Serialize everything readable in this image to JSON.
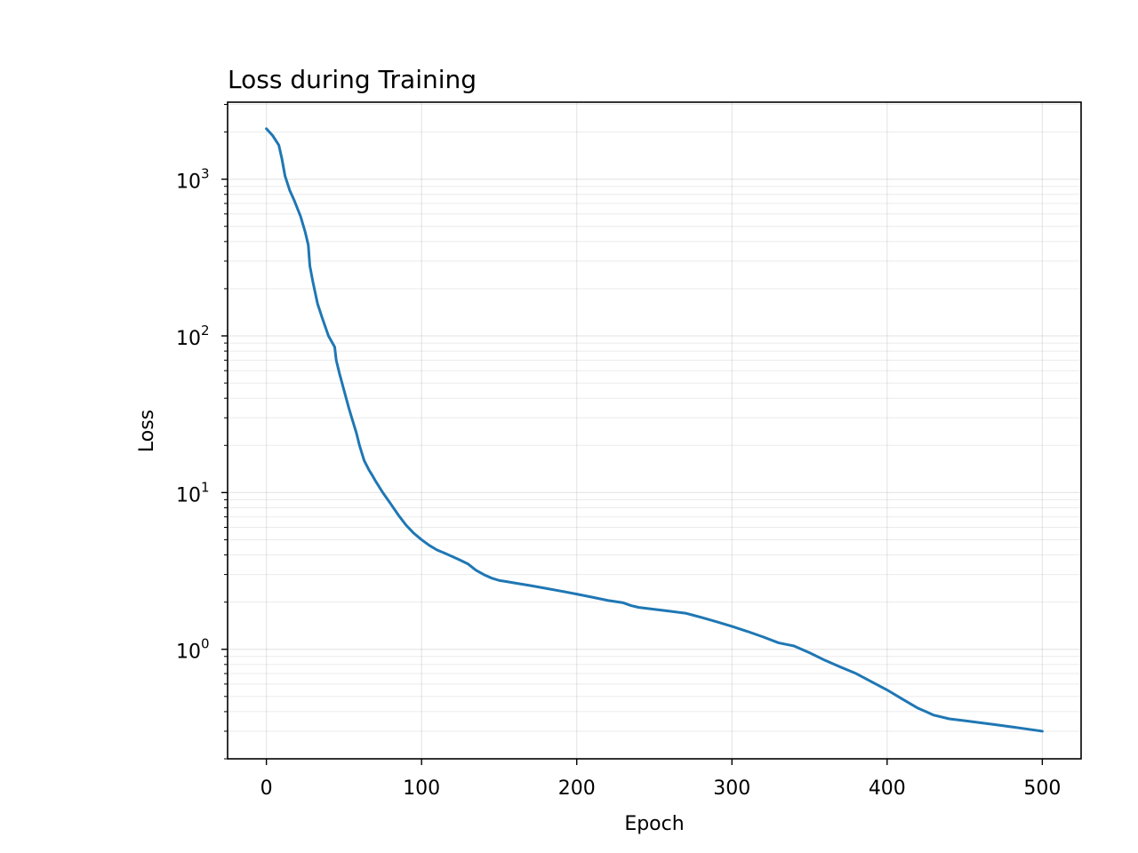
{
  "chart_data": {
    "type": "line",
    "title": "Loss during Training",
    "xlabel": "Epoch",
    "ylabel": "Loss",
    "yscale": "log",
    "xlim": [
      -25,
      525
    ],
    "ylim": [
      0.2,
      3100
    ],
    "xticks": [
      0,
      100,
      200,
      300,
      400,
      500
    ],
    "yticks": [
      {
        "value": 1,
        "base": "10",
        "exp": "0"
      },
      {
        "value": 10,
        "base": "10",
        "exp": "1"
      },
      {
        "value": 100,
        "base": "10",
        "exp": "2"
      },
      {
        "value": 1000,
        "base": "10",
        "exp": "3"
      }
    ],
    "grid": true,
    "line_color": "#1f77b4",
    "series": [
      {
        "x": [
          0,
          4,
          8,
          10,
          12,
          15,
          18,
          22,
          25,
          27,
          28,
          30,
          33,
          36,
          40,
          44,
          45,
          47,
          50,
          53,
          55,
          58,
          60,
          63,
          66,
          68,
          70,
          75,
          80,
          85,
          90,
          95,
          100,
          105,
          110,
          115,
          120,
          125,
          130,
          135,
          140,
          145,
          150,
          155,
          160,
          170,
          180,
          190,
          200,
          210,
          220,
          230,
          235,
          240,
          250,
          260,
          270,
          275,
          280,
          285,
          290,
          300,
          310,
          320,
          330,
          340,
          350,
          360,
          370,
          380,
          390,
          400,
          410,
          420,
          425,
          430,
          440,
          450,
          460,
          470,
          480,
          490,
          500
        ],
        "y": [
          2100,
          1900,
          1650,
          1350,
          1050,
          850,
          730,
          580,
          460,
          380,
          280,
          220,
          160,
          130,
          100,
          85,
          70,
          58,
          45,
          35,
          30,
          24,
          20,
          16,
          14,
          13,
          12,
          10,
          8.5,
          7.2,
          6.2,
          5.5,
          5.0,
          4.6,
          4.3,
          4.1,
          3.9,
          3.7,
          3.5,
          3.2,
          3.0,
          2.85,
          2.75,
          2.7,
          2.65,
          2.55,
          2.45,
          2.35,
          2.25,
          2.15,
          2.05,
          1.98,
          1.9,
          1.85,
          1.8,
          1.75,
          1.7,
          1.65,
          1.6,
          1.55,
          1.5,
          1.4,
          1.3,
          1.2,
          1.1,
          1.05,
          0.95,
          0.85,
          0.77,
          0.7,
          0.62,
          0.55,
          0.48,
          0.42,
          0.4,
          0.38,
          0.36,
          0.35,
          0.34,
          0.33,
          0.32,
          0.31,
          0.3
        ]
      }
    ]
  }
}
